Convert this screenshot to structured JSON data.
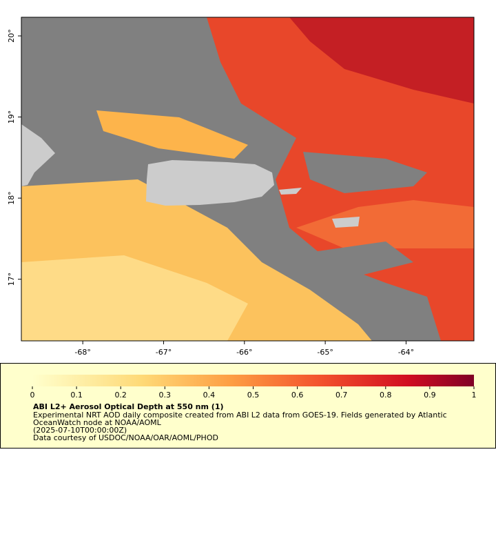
{
  "map": {
    "xlim": [
      -68.76,
      -63.16
    ],
    "ylim": [
      16.24,
      20.23
    ],
    "xticks": [
      {
        "value": -68,
        "label": "-68°"
      },
      {
        "value": -67,
        "label": "-67°"
      },
      {
        "value": -66,
        "label": "-66°"
      },
      {
        "value": -65,
        "label": "-65°"
      },
      {
        "value": -64,
        "label": "-64°"
      }
    ],
    "yticks": [
      {
        "value": 17,
        "label": "17°"
      },
      {
        "value": 18,
        "label": "18°"
      },
      {
        "value": 19,
        "label": "19°"
      },
      {
        "value": 20,
        "label": "20°"
      }
    ]
  },
  "colorbar": {
    "lim": [
      0,
      1
    ],
    "ticks": [
      0,
      0.1,
      0.2,
      0.3,
      0.4,
      0.5,
      0.6,
      0.7,
      0.8,
      0.9,
      1
    ]
  },
  "legend": {
    "title": "ABI L2+ Aerosol Optical Depth at 550 nm (1)",
    "lines": [
      "Experimental NRT AOD daily composite created from ABI L2 data from GOES-19. Fields generated by Atlantic",
      "OceanWatch node at NOAA/AOML",
      "(2025-07-10T00:00:00Z)",
      "Data courtesy of USDOC/NOAA/OAR/AOML/PHOD"
    ]
  }
}
